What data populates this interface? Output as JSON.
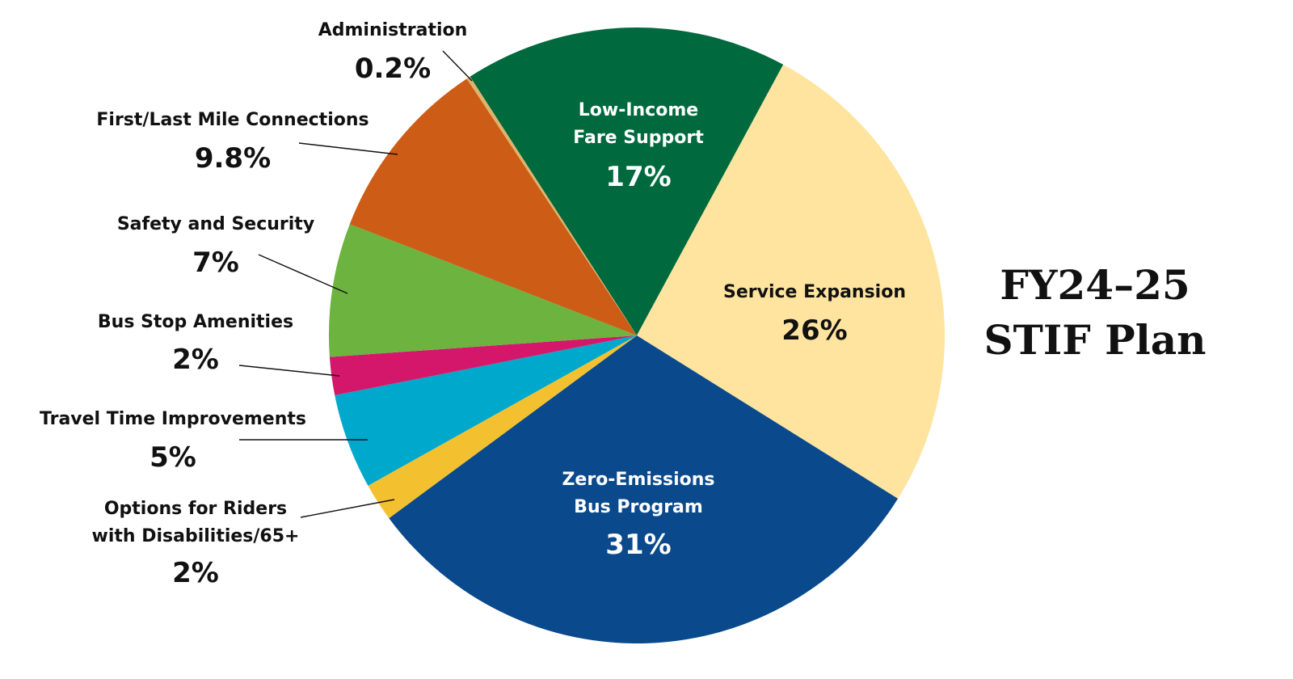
{
  "chart_data": {
    "type": "pie",
    "title": [
      "FY24–25",
      "STIF Plan"
    ],
    "slices": [
      {
        "name": "Low-Income Fare Support",
        "lines": [
          "Low-Income",
          "Fare Support"
        ],
        "value": 17,
        "label": "17%",
        "color": "#006a3e",
        "text_color": "#ffffff",
        "placement": "inside"
      },
      {
        "name": "Service Expansion",
        "lines": [
          "Service Expansion"
        ],
        "value": 26,
        "label": "26%",
        "color": "#fee49e",
        "text_color": "#111111",
        "placement": "inside"
      },
      {
        "name": "Zero-Emissions Bus Program",
        "lines": [
          "Zero-Emissions",
          "Bus Program"
        ],
        "value": 31,
        "label": "31%",
        "color": "#0a4a8c",
        "text_color": "#ffffff",
        "placement": "inside"
      },
      {
        "name": "Options for Riders with Disabilities/65+",
        "lines": [
          "Options for Riders",
          "with Disabilities/65+"
        ],
        "value": 2,
        "label": "2%",
        "color": "#f3c130",
        "text_color": "#111111",
        "placement": "outside"
      },
      {
        "name": "Travel Time Improvements",
        "lines": [
          "Travel Time Improvements"
        ],
        "value": 5,
        "label": "5%",
        "color": "#00a9cc",
        "text_color": "#111111",
        "placement": "outside"
      },
      {
        "name": "Bus Stop Amenities",
        "lines": [
          "Bus Stop Amenities"
        ],
        "value": 2,
        "label": "2%",
        "color": "#d4176b",
        "text_color": "#111111",
        "placement": "outside"
      },
      {
        "name": "Safety and Security",
        "lines": [
          "Safety and Security"
        ],
        "value": 7,
        "label": "7%",
        "color": "#6db33f",
        "text_color": "#111111",
        "placement": "outside"
      },
      {
        "name": "First/Last Mile Connections",
        "lines": [
          "First/Last Mile Connections"
        ],
        "value": 9.8,
        "label": "9.8%",
        "color": "#cd5c17",
        "text_color": "#111111",
        "placement": "outside"
      },
      {
        "name": "Administration",
        "lines": [
          "Administration"
        ],
        "value": 0.2,
        "label": "0.2%",
        "color": "#dfb46a",
        "text_color": "#111111",
        "placement": "outside"
      }
    ],
    "start_angle_deg": -32.8,
    "direction": "clockwise",
    "legend": "none"
  }
}
